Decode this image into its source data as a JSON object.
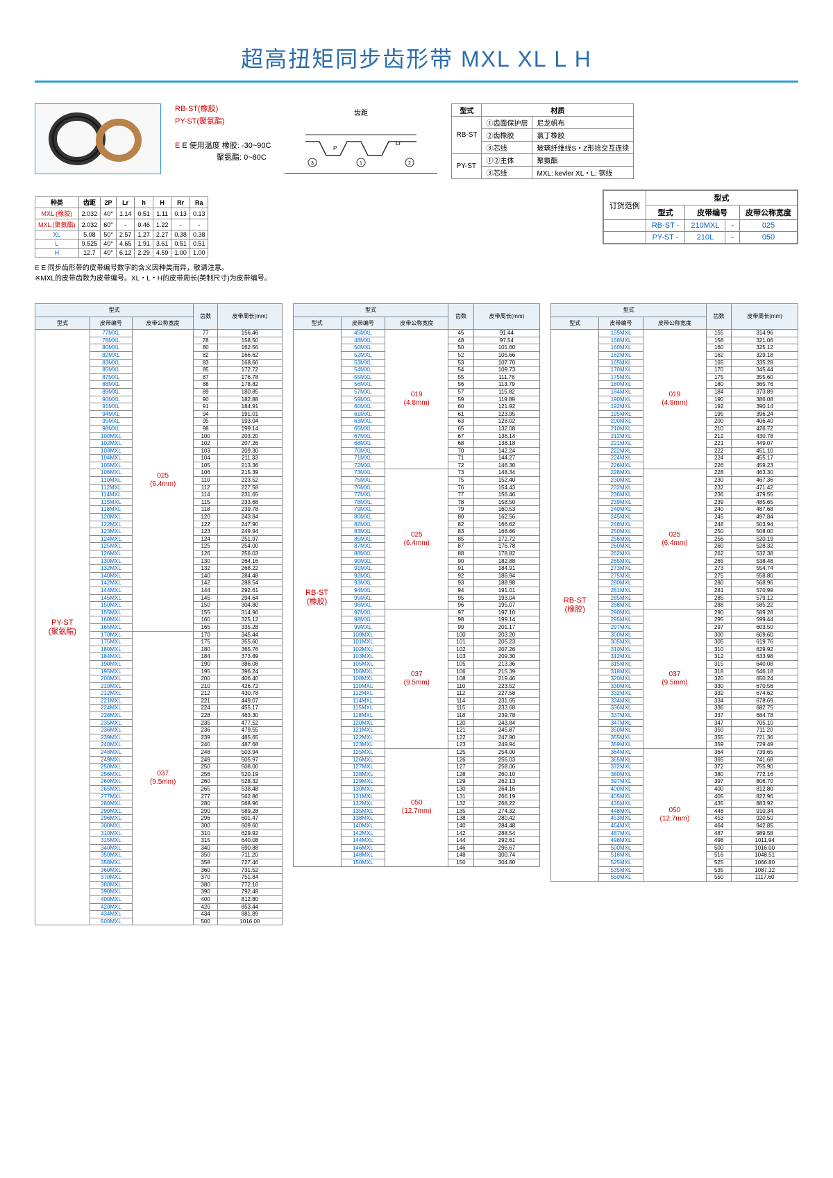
{
  "title": "超高扭矩同步齿形带 MXL XL L H",
  "type_labels": {
    "rbst": "RB-ST(橡胶)",
    "pyst": "PY-ST(聚氨酯)",
    "temp_label": "E 使用温度 橡胶: -30~90C",
    "temp_label2": "聚氨酯: 0~80C"
  },
  "diagram_label": "齿距",
  "material_table": {
    "header": [
      "型式",
      "",
      "材质"
    ],
    "rows": [
      [
        "RB-ST",
        "①齿面保护层",
        "尼龙帆布"
      ],
      [
        "",
        "②齿橡胶",
        "氯丁橡胶"
      ],
      [
        "",
        "③芯线",
        "玻璃纤维线S・Z形捻交互连续"
      ],
      [
        "PY-ST",
        "①②主体",
        "聚氨酯"
      ],
      [
        "",
        "③芯线",
        "MXL: kevler  XL・L: 钢线"
      ]
    ]
  },
  "spec_table": {
    "header": [
      "种类",
      "齿距",
      "2P",
      "Lr",
      "h",
      "H",
      "Rr",
      "Ra"
    ],
    "rows": [
      [
        "MXL (橡胶)",
        "2.032",
        "40°",
        "1.14",
        "0.51",
        "1.11",
        "0.13",
        "0.13"
      ],
      [
        "MXL (聚氨酯)",
        "2.032",
        "60°",
        "-",
        "0.46",
        "1.22",
        "-",
        "-"
      ],
      [
        "XL",
        "5.08",
        "50°",
        "2.57",
        "1.27",
        "2.27",
        "0.38",
        "0.38"
      ],
      [
        "L",
        "9.525",
        "40°",
        "4.65",
        "1.91",
        "3.61",
        "0.51",
        "0.51"
      ],
      [
        "H",
        "12.7",
        "40°",
        "6.12",
        "2.29",
        "4.59",
        "1.00",
        "1.00"
      ]
    ]
  },
  "notes": {
    "line1": "E 同步齿形带的皮带编号数字的含义因种类而异，敬请注意。",
    "line2": "※MXL的皮带齿数为皮带编号。XL・L・H的皮带周长(英制尺寸)为皮带编号。"
  },
  "order_example": {
    "title": "订货范例",
    "header_type": "型式",
    "headers": [
      "型式",
      "皮带编号",
      "皮带公称宽度"
    ],
    "rows": [
      [
        "RB-ST -",
        "210MXL",
        "-",
        "025"
      ],
      [
        "PY-ST -",
        "210L",
        "-",
        "050"
      ]
    ]
  },
  "data_headers": {
    "type": "型式",
    "type_sub": "型式",
    "code": "皮带编号",
    "width": "皮带公称宽度",
    "teeth": "齿数",
    "length": "皮带周长(mm)"
  },
  "table1": {
    "type": "PY-ST\n(聚氨酯)",
    "widths": [
      "025\n(6.4mm)",
      "037\n(9.5mm)"
    ],
    "rows": [
      [
        "77MXL",
        "77",
        "156.46"
      ],
      [
        "78MXL",
        "78",
        "158.50"
      ],
      [
        "80MXL",
        "80",
        "162.56"
      ],
      [
        "82MXL",
        "82",
        "166.62"
      ],
      [
        "83MXL",
        "83",
        "168.66"
      ],
      [
        "85MXL",
        "85",
        "172.72"
      ],
      [
        "87MXL",
        "87",
        "176.78"
      ],
      [
        "88MXL",
        "88",
        "178.82"
      ],
      [
        "89MXL",
        "89",
        "180.85"
      ],
      [
        "90MXL",
        "90",
        "182.88"
      ],
      [
        "91MXL",
        "91",
        "184.91"
      ],
      [
        "94MXL",
        "94",
        "191.01"
      ],
      [
        "95MXL",
        "95",
        "193.04"
      ],
      [
        "98MXL",
        "98",
        "199.14"
      ],
      [
        "100MXL",
        "100",
        "203.20"
      ],
      [
        "102MXL",
        "102",
        "207.26"
      ],
      [
        "103MXL",
        "103",
        "209.30"
      ],
      [
        "104MXL",
        "104",
        "211.33"
      ],
      [
        "105MXL",
        "105",
        "213.36"
      ],
      [
        "106MXL",
        "106",
        "215.39"
      ],
      [
        "110MXL",
        "110",
        "223.52"
      ],
      [
        "112MXL",
        "112",
        "227.58"
      ],
      [
        "114MXL",
        "114",
        "231.65"
      ],
      [
        "115MXL",
        "115",
        "233.68"
      ],
      [
        "118MXL",
        "118",
        "239.78"
      ],
      [
        "120MXL",
        "120",
        "243.84"
      ],
      [
        "122MXL",
        "122",
        "247.90"
      ],
      [
        "123MXL",
        "123",
        "249.94"
      ],
      [
        "124MXL",
        "124",
        "251.97"
      ],
      [
        "125MXL",
        "125",
        "254.00"
      ],
      [
        "126MXL",
        "126",
        "256.03"
      ],
      [
        "130MXL",
        "130",
        "264.16"
      ],
      [
        "132MXL",
        "132",
        "268.22"
      ],
      [
        "140MXL",
        "140",
        "284.48"
      ],
      [
        "142MXL",
        "142",
        "288.54"
      ],
      [
        "144MXL",
        "144",
        "292.61"
      ],
      [
        "145MXL",
        "145",
        "294.64"
      ],
      [
        "150MXL",
        "150",
        "304.80"
      ],
      [
        "155MXL",
        "155",
        "314.96"
      ],
      [
        "160MXL",
        "160",
        "325.12"
      ],
      [
        "165MXL",
        "165",
        "335.28"
      ],
      [
        "170MXL",
        "170",
        "345.44"
      ],
      [
        "175MXL",
        "175",
        "355.60"
      ],
      [
        "180MXL",
        "180",
        "365.76"
      ],
      [
        "184MXL",
        "184",
        "373.89"
      ],
      [
        "190MXL",
        "190",
        "386.08"
      ],
      [
        "195MXL",
        "195",
        "396.24"
      ],
      [
        "200MXL",
        "200",
        "406.40"
      ],
      [
        "210MXL",
        "210",
        "426.72"
      ],
      [
        "212MXL",
        "212",
        "430.78"
      ],
      [
        "221MXL",
        "221",
        "449.07"
      ],
      [
        "224MXL",
        "224",
        "455.17"
      ],
      [
        "228MXL",
        "228",
        "463.30"
      ],
      [
        "235MXL",
        "235",
        "477.52"
      ],
      [
        "236MXL",
        "236",
        "479.55"
      ],
      [
        "239MXL",
        "239",
        "485.65"
      ],
      [
        "240MXL",
        "240",
        "487.68"
      ],
      [
        "248MXL",
        "248",
        "503.94"
      ],
      [
        "249MXL",
        "249",
        "505.97"
      ],
      [
        "250MXL",
        "250",
        "508.00"
      ],
      [
        "256MXL",
        "256",
        "520.19"
      ],
      [
        "260MXL",
        "260",
        "528.32"
      ],
      [
        "265MXL",
        "265",
        "538.48"
      ],
      [
        "277MXL",
        "277",
        "562.86"
      ],
      [
        "280MXL",
        "280",
        "568.96"
      ],
      [
        "290MXL",
        "290",
        "589.28"
      ],
      [
        "296MXL",
        "296",
        "601.47"
      ],
      [
        "300MXL",
        "300",
        "609.60"
      ],
      [
        "310MXL",
        "310",
        "629.92"
      ],
      [
        "315MXL",
        "315",
        "640.08"
      ],
      [
        "340MXL",
        "340",
        "690.88"
      ],
      [
        "350MXL",
        "350",
        "711.20"
      ],
      [
        "358MXL",
        "358",
        "727.46"
      ],
      [
        "360MXL",
        "360",
        "731.52"
      ],
      [
        "370MXL",
        "370",
        "751.84"
      ],
      [
        "380MXL",
        "380",
        "772.16"
      ],
      [
        "390MXL",
        "390",
        "792.48"
      ],
      [
        "400MXL",
        "400",
        "812.80"
      ],
      [
        "420MXL",
        "420",
        "853.44"
      ],
      [
        "434MXL",
        "434",
        "881.89"
      ],
      [
        "500MXL",
        "500",
        "1016.00"
      ]
    ]
  },
  "table2": {
    "type": "RB-ST\n(橡胶)",
    "widths": [
      "019\n(4.8mm)",
      "025\n(6.4mm)",
      "037\n(9.5mm)",
      "050\n(12.7mm)"
    ],
    "rows": [
      [
        "45MXL",
        "45",
        "91.44"
      ],
      [
        "48MXL",
        "48",
        "97.54"
      ],
      [
        "50MXL",
        "50",
        "101.60"
      ],
      [
        "52MXL",
        "52",
        "105.66"
      ],
      [
        "53MXL",
        "53",
        "107.70"
      ],
      [
        "54MXL",
        "54",
        "109.73"
      ],
      [
        "55MXL",
        "55",
        "111.76"
      ],
      [
        "56MXL",
        "56",
        "113.79"
      ],
      [
        "57MXL",
        "57",
        "115.82"
      ],
      [
        "59MXL",
        "59",
        "119.89"
      ],
      [
        "60MXL",
        "60",
        "121.92"
      ],
      [
        "61MXL",
        "61",
        "123.95"
      ],
      [
        "63MXL",
        "63",
        "128.02"
      ],
      [
        "65MXL",
        "65",
        "132.08"
      ],
      [
        "67MXL",
        "67",
        "136.14"
      ],
      [
        "68MXL",
        "68",
        "138.18"
      ],
      [
        "70MXL",
        "70",
        "142.24"
      ],
      [
        "71MXL",
        "71",
        "144.27"
      ],
      [
        "72MXL",
        "72",
        "146.30"
      ],
      [
        "73MXL",
        "73",
        "148.34"
      ],
      [
        "75MXL",
        "75",
        "152.40"
      ],
      [
        "76MXL",
        "76",
        "154.43"
      ],
      [
        "77MXL",
        "77",
        "156.46"
      ],
      [
        "78MXL",
        "78",
        "158.50"
      ],
      [
        "79MXL",
        "79",
        "160.53"
      ],
      [
        "80MXL",
        "80",
        "162.56"
      ],
      [
        "82MXL",
        "82",
        "166.62"
      ],
      [
        "83MXL",
        "83",
        "168.66"
      ],
      [
        "85MXL",
        "85",
        "172.72"
      ],
      [
        "87MXL",
        "87",
        "176.78"
      ],
      [
        "88MXL",
        "88",
        "178.82"
      ],
      [
        "90MXL",
        "90",
        "182.88"
      ],
      [
        "91MXL",
        "91",
        "184.91"
      ],
      [
        "92MXL",
        "92",
        "186.94"
      ],
      [
        "93MXL",
        "93",
        "188.98"
      ],
      [
        "94MXL",
        "94",
        "191.01"
      ],
      [
        "95MXL",
        "95",
        "193.04"
      ],
      [
        "96MXL",
        "96",
        "195.07"
      ],
      [
        "97MXL",
        "97",
        "197.10"
      ],
      [
        "98MXL",
        "98",
        "199.14"
      ],
      [
        "99MXL",
        "99",
        "201.17"
      ],
      [
        "100MXL",
        "100",
        "203.20"
      ],
      [
        "101MXL",
        "101",
        "205.23"
      ],
      [
        "102MXL",
        "102",
        "207.26"
      ],
      [
        "103MXL",
        "103",
        "209.30"
      ],
      [
        "105MXL",
        "105",
        "213.36"
      ],
      [
        "106MXL",
        "106",
        "215.39"
      ],
      [
        "108MXL",
        "108",
        "219.46"
      ],
      [
        "110MXL",
        "110",
        "223.52"
      ],
      [
        "112MXL",
        "112",
        "227.58"
      ],
      [
        "114MXL",
        "114",
        "231.65"
      ],
      [
        "115MXL",
        "115",
        "233.68"
      ],
      [
        "118MXL",
        "118",
        "239.78"
      ],
      [
        "120MXL",
        "120",
        "243.84"
      ],
      [
        "121MXL",
        "121",
        "245.87"
      ],
      [
        "122MXL",
        "122",
        "247.90"
      ],
      [
        "123MXL",
        "123",
        "249.94"
      ],
      [
        "125MXL",
        "125",
        "254.00"
      ],
      [
        "126MXL",
        "126",
        "256.03"
      ],
      [
        "127MXL",
        "127",
        "258.06"
      ],
      [
        "128MXL",
        "128",
        "260.10"
      ],
      [
        "129MXL",
        "129",
        "262.13"
      ],
      [
        "130MXL",
        "130",
        "264.16"
      ],
      [
        "131MXL",
        "131",
        "266.19"
      ],
      [
        "132MXL",
        "132",
        "268.22"
      ],
      [
        "135MXL",
        "135",
        "274.32"
      ],
      [
        "138MXL",
        "138",
        "280.42"
      ],
      [
        "140MXL",
        "140",
        "284.48"
      ],
      [
        "142MXL",
        "142",
        "288.54"
      ],
      [
        "144MXL",
        "144",
        "292.61"
      ],
      [
        "146MXL",
        "146",
        "296.67"
      ],
      [
        "148MXL",
        "148",
        "300.74"
      ],
      [
        "150MXL",
        "150",
        "304.80"
      ]
    ]
  },
  "table3": {
    "type": "RB-ST\n(橡胶)",
    "widths": [
      "019\n(4.8mm)",
      "025\n(6.4mm)",
      "037\n(9.5mm)",
      "050\n(12.7mm)"
    ],
    "rows": [
      [
        "155MXL",
        "155",
        "314.96"
      ],
      [
        "158MXL",
        "158",
        "321.06"
      ],
      [
        "160MXL",
        "160",
        "325.12"
      ],
      [
        "162MXL",
        "162",
        "329.18"
      ],
      [
        "165MXL",
        "165",
        "335.28"
      ],
      [
        "170MXL",
        "170",
        "345.44"
      ],
      [
        "175MXL",
        "175",
        "355.60"
      ],
      [
        "180MXL",
        "180",
        "365.76"
      ],
      [
        "184MXL",
        "184",
        "373.89"
      ],
      [
        "190MXL",
        "190",
        "386.08"
      ],
      [
        "192MXL",
        "192",
        "390.14"
      ],
      [
        "195MXL",
        "195",
        "396.24"
      ],
      [
        "200MXL",
        "200",
        "406.40"
      ],
      [
        "210MXL",
        "210",
        "426.72"
      ],
      [
        "212MXL",
        "212",
        "430.78"
      ],
      [
        "221MXL",
        "221",
        "449.07"
      ],
      [
        "222MXL",
        "222",
        "451.10"
      ],
      [
        "224MXL",
        "224",
        "455.17"
      ],
      [
        "226MXL",
        "226",
        "459.23"
      ],
      [
        "228MXL",
        "228",
        "463.30"
      ],
      [
        "230MXL",
        "230",
        "467.36"
      ],
      [
        "232MXL",
        "232",
        "471.42"
      ],
      [
        "236MXL",
        "236",
        "479.55"
      ],
      [
        "239MXL",
        "239",
        "485.65"
      ],
      [
        "240MXL",
        "240",
        "487.68"
      ],
      [
        "245MXL",
        "245",
        "497.84"
      ],
      [
        "248MXL",
        "248",
        "503.94"
      ],
      [
        "250MXL",
        "250",
        "508.00"
      ],
      [
        "256MXL",
        "256",
        "520.19"
      ],
      [
        "260MXL",
        "260",
        "528.32"
      ],
      [
        "262MXL",
        "262",
        "532.38"
      ],
      [
        "265MXL",
        "265",
        "538.48"
      ],
      [
        "273MXL",
        "273",
        "554.74"
      ],
      [
        "275MXL",
        "275",
        "558.80"
      ],
      [
        "280MXL",
        "280",
        "568.96"
      ],
      [
        "281MXL",
        "281",
        "570.99"
      ],
      [
        "285MXL",
        "285",
        "579.12"
      ],
      [
        "288MXL",
        "288",
        "585.22"
      ],
      [
        "290MXL",
        "290",
        "589.28"
      ],
      [
        "295MXL",
        "295",
        "599.44"
      ],
      [
        "297MXL",
        "297",
        "603.50"
      ],
      [
        "300MXL",
        "300",
        "609.60"
      ],
      [
        "305MXL",
        "305",
        "619.76"
      ],
      [
        "310MXL",
        "310",
        "629.92"
      ],
      [
        "312MXL",
        "312",
        "633.98"
      ],
      [
        "315MXL",
        "315",
        "640.08"
      ],
      [
        "318MXL",
        "318",
        "646.18"
      ],
      [
        "320MXL",
        "320",
        "650.24"
      ],
      [
        "330MXL",
        "330",
        "670.56"
      ],
      [
        "332MXL",
        "332",
        "674.62"
      ],
      [
        "334MXL",
        "334",
        "678.69"
      ],
      [
        "336MXL",
        "336",
        "682.75"
      ],
      [
        "337MXL",
        "337",
        "684.78"
      ],
      [
        "347MXL",
        "347",
        "705.10"
      ],
      [
        "350MXL",
        "350",
        "711.20"
      ],
      [
        "355MXL",
        "355",
        "721.36"
      ],
      [
        "359MXL",
        "359",
        "729.49"
      ],
      [
        "364MXL",
        "364",
        "739.65"
      ],
      [
        "365MXL",
        "365",
        "741.68"
      ],
      [
        "372MXL",
        "372",
        "755.90"
      ],
      [
        "380MXL",
        "380",
        "772.16"
      ],
      [
        "397MXL",
        "397",
        "806.70"
      ],
      [
        "400MXL",
        "400",
        "812.80"
      ],
      [
        "405MXL",
        "405",
        "822.96"
      ],
      [
        "435MXL",
        "435",
        "883.92"
      ],
      [
        "448MXL",
        "448",
        "910.34"
      ],
      [
        "453MXL",
        "453",
        "920.50"
      ],
      [
        "464MXL",
        "464",
        "942.85"
      ],
      [
        "487MXL",
        "487",
        "989.58"
      ],
      [
        "498MXL",
        "498",
        "1011.94"
      ],
      [
        "500MXL",
        "500",
        "1016.00"
      ],
      [
        "516MXL",
        "516",
        "1048.51"
      ],
      [
        "525MXL",
        "525",
        "1066.80"
      ],
      [
        "535MXL",
        "535",
        "1087.12"
      ],
      [
        "550MXL",
        "550",
        "1117.60"
      ]
    ]
  }
}
